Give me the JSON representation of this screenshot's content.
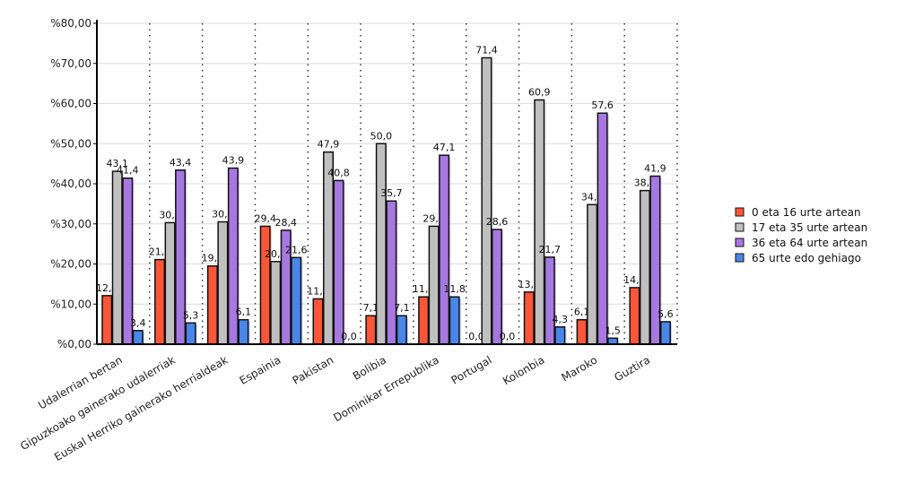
{
  "chart_data": {
    "type": "bar",
    "title": "",
    "xlabel": "",
    "ylabel": "",
    "ylim": [
      0,
      80
    ],
    "yticks": [
      "%0,00",
      "%10,00",
      "%20,00",
      "%30,00",
      "%40,00",
      "%50,00",
      "%60,00",
      "%70,00",
      "%80,00"
    ],
    "grid": true,
    "legend_position": "right",
    "categories": [
      "Udalerrian bertan",
      "Gipuzkoako gainerako udalerriak",
      "Euskal Herriko gainerako herrialdeak",
      "Espainia",
      "Pakistan",
      "Bolibia",
      "Dominikar Errepublika",
      "Portugal",
      "Kolonbia",
      "Maroko",
      "Guztira"
    ],
    "series": [
      {
        "name": "0 eta 16 urte artean",
        "color": "#fb5638",
        "values": [
          12.1,
          21.1,
          19.5,
          29.4,
          11.3,
          7.1,
          11.8,
          0.0,
          13.0,
          6.1,
          14.1
        ]
      },
      {
        "name": "17 eta 35 urte artean",
        "color": "#c0c0c0",
        "values": [
          43.1,
          30.3,
          30.5,
          20.6,
          47.9,
          50.0,
          29.4,
          71.4,
          60.9,
          34.8,
          38.3
        ]
      },
      {
        "name": "36 eta 64 urte artean",
        "color": "#a678e0",
        "values": [
          41.4,
          43.4,
          43.9,
          28.4,
          40.8,
          35.7,
          47.1,
          28.6,
          21.7,
          57.6,
          41.9
        ]
      },
      {
        "name": "65 urte edo gehiago",
        "color": "#4a86e8",
        "values": [
          3.4,
          5.3,
          6.1,
          21.6,
          0.0,
          7.1,
          11.8,
          0.0,
          4.3,
          1.5,
          5.6
        ]
      }
    ]
  }
}
